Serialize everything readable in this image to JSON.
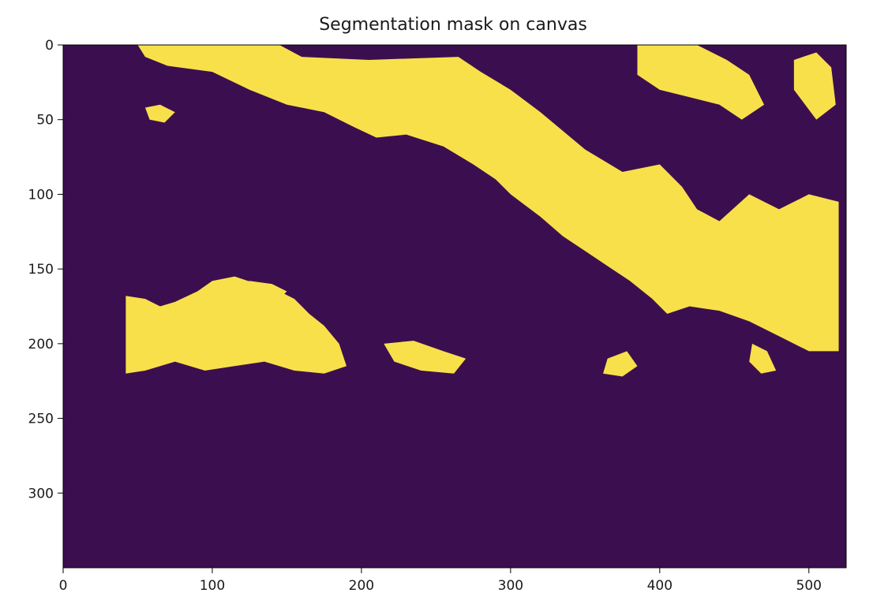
{
  "chart_data": {
    "type": "heatmap",
    "title": "Segmentation mask on canvas",
    "xlabel": "",
    "ylabel": "",
    "xlim": [
      0,
      525
    ],
    "ylim": [
      350,
      0
    ],
    "x_ticks": [
      0,
      100,
      200,
      300,
      400,
      500
    ],
    "y_ticks": [
      0,
      50,
      100,
      150,
      200,
      250,
      300
    ],
    "grid": false,
    "colormap": "viridis",
    "colors": {
      "background": "#3b0f4f",
      "mask": "#f8e04b"
    },
    "mask_regions": [
      {
        "name": "upper-right band",
        "polygon": [
          [
            50,
            0
          ],
          [
            145,
            0
          ],
          [
            160,
            8
          ],
          [
            205,
            10
          ],
          [
            265,
            8
          ],
          [
            280,
            18
          ],
          [
            300,
            30
          ],
          [
            320,
            45
          ],
          [
            350,
            70
          ],
          [
            375,
            85
          ],
          [
            400,
            80
          ],
          [
            415,
            95
          ],
          [
            425,
            110
          ],
          [
            440,
            118
          ],
          [
            460,
            100
          ],
          [
            480,
            110
          ],
          [
            500,
            100
          ],
          [
            520,
            105
          ],
          [
            520,
            205
          ],
          [
            500,
            205
          ],
          [
            480,
            195
          ],
          [
            460,
            185
          ],
          [
            440,
            178
          ],
          [
            420,
            175
          ],
          [
            405,
            180
          ],
          [
            395,
            170
          ],
          [
            380,
            158
          ],
          [
            365,
            148
          ],
          [
            350,
            138
          ],
          [
            335,
            128
          ],
          [
            320,
            115
          ],
          [
            300,
            100
          ],
          [
            290,
            90
          ],
          [
            275,
            80
          ],
          [
            255,
            68
          ],
          [
            230,
            60
          ],
          [
            210,
            62
          ],
          [
            195,
            55
          ],
          [
            175,
            45
          ],
          [
            150,
            40
          ],
          [
            125,
            30
          ],
          [
            100,
            18
          ],
          [
            70,
            14
          ],
          [
            55,
            8
          ]
        ]
      },
      {
        "name": "top-right blob",
        "polygon": [
          [
            385,
            0
          ],
          [
            425,
            0
          ],
          [
            445,
            10
          ],
          [
            460,
            20
          ],
          [
            470,
            40
          ],
          [
            455,
            50
          ],
          [
            440,
            40
          ],
          [
            420,
            35
          ],
          [
            400,
            30
          ],
          [
            385,
            20
          ]
        ]
      },
      {
        "name": "far right top",
        "polygon": [
          [
            490,
            10
          ],
          [
            505,
            5
          ],
          [
            515,
            15
          ],
          [
            518,
            40
          ],
          [
            505,
            50
          ],
          [
            490,
            30
          ]
        ]
      },
      {
        "name": "lower-left mass",
        "polygon": [
          [
            42,
            168
          ],
          [
            55,
            170
          ],
          [
            65,
            175
          ],
          [
            75,
            172
          ],
          [
            90,
            165
          ],
          [
            100,
            158
          ],
          [
            115,
            155
          ],
          [
            130,
            160
          ],
          [
            145,
            165
          ],
          [
            155,
            170
          ],
          [
            165,
            180
          ],
          [
            175,
            188
          ],
          [
            185,
            200
          ],
          [
            190,
            215
          ],
          [
            175,
            220
          ],
          [
            155,
            218
          ],
          [
            135,
            212
          ],
          [
            115,
            215
          ],
          [
            95,
            218
          ],
          [
            75,
            212
          ],
          [
            55,
            218
          ],
          [
            42,
            220
          ]
        ]
      },
      {
        "name": "mid blob",
        "polygon": [
          [
            108,
            162
          ],
          [
            125,
            158
          ],
          [
            140,
            160
          ],
          [
            150,
            165
          ],
          [
            140,
            175
          ],
          [
            120,
            178
          ],
          [
            108,
            172
          ]
        ]
      },
      {
        "name": "center scatter",
        "polygon": [
          [
            215,
            200
          ],
          [
            235,
            198
          ],
          [
            255,
            205
          ],
          [
            270,
            210
          ],
          [
            262,
            220
          ],
          [
            240,
            218
          ],
          [
            222,
            212
          ]
        ]
      },
      {
        "name": "lower-right patch",
        "polygon": [
          [
            365,
            210
          ],
          [
            378,
            205
          ],
          [
            385,
            215
          ],
          [
            375,
            222
          ],
          [
            362,
            220
          ]
        ]
      },
      {
        "name": "small right patch",
        "polygon": [
          [
            462,
            200
          ],
          [
            472,
            205
          ],
          [
            478,
            218
          ],
          [
            468,
            220
          ],
          [
            460,
            212
          ]
        ]
      },
      {
        "name": "small upper-left patch",
        "polygon": [
          [
            55,
            42
          ],
          [
            65,
            40
          ],
          [
            75,
            45
          ],
          [
            68,
            52
          ],
          [
            58,
            50
          ]
        ]
      }
    ]
  }
}
